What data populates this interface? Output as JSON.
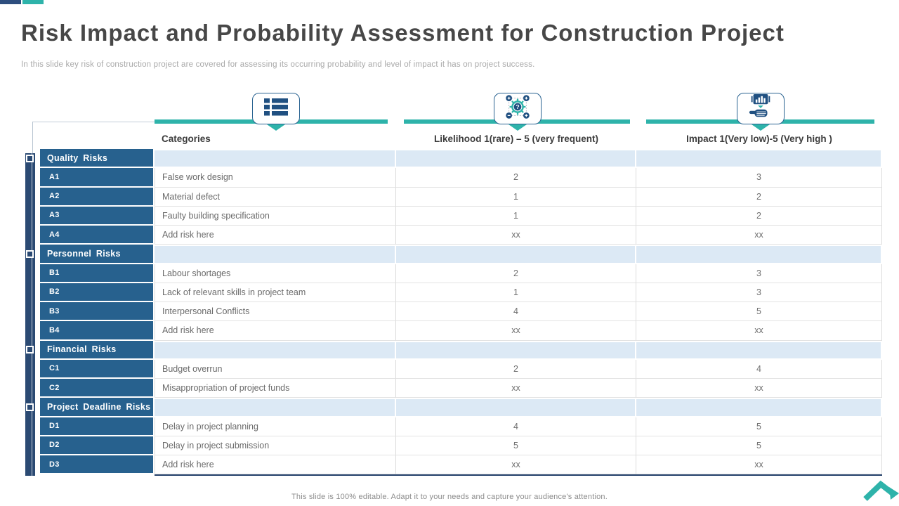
{
  "slide": {
    "title": "Risk Impact and Probability Assessment for Construction Project",
    "subtitle": "In this slide key risk of construction project are covered for assessing its occurring probability and level of impact it has on project success.",
    "footer_note": "This slide is 100% editable.  Adapt it to your needs and capture your audience's attention."
  },
  "colors": {
    "navy_accent": "#2e4e7e",
    "teal_accent": "#2eb3aa",
    "spine_navy": "#2b4a73",
    "sidebar_blue": "#27618e",
    "band_light_blue": "#dce9f5",
    "icon_navy": "#205081",
    "table_bottom_border": "#24416b"
  },
  "icons": [
    {
      "name": "list-icon"
    },
    {
      "name": "gear-question-icon"
    },
    {
      "name": "hand-holding-chart-icon"
    },
    {
      "name": "chevron-up-arrow-icon"
    }
  ],
  "table": {
    "columns": [
      "Categories",
      "Likelihood 1(rare) – 5 (very frequent)",
      "Impact 1(Very low)-5 (Very high )"
    ],
    "rows": [
      {
        "type": "group",
        "label": "Quality Risks"
      },
      {
        "type": "item",
        "label": "A1",
        "category": "False work design",
        "likelihood": "2",
        "impact": "3"
      },
      {
        "type": "item",
        "label": "A2",
        "category": "Material defect",
        "likelihood": "1",
        "impact": "2"
      },
      {
        "type": "item",
        "label": "A3",
        "category": "Faulty building specification",
        "likelihood": "1",
        "impact": "2"
      },
      {
        "type": "item",
        "label": "A4",
        "category": "Add risk here",
        "likelihood": "xx",
        "impact": "xx"
      },
      {
        "type": "group",
        "label": "Personnel Risks"
      },
      {
        "type": "item",
        "label": "B1",
        "category": "Labour shortages",
        "likelihood": "2",
        "impact": "3"
      },
      {
        "type": "item",
        "label": "B2",
        "category": "Lack of relevant skills in project team",
        "likelihood": "1",
        "impact": "3"
      },
      {
        "type": "item",
        "label": "B3",
        "category": "Interpersonal Conflicts",
        "likelihood": "4",
        "impact": "5"
      },
      {
        "type": "item",
        "label": "B4",
        "category": "Add risk here",
        "likelihood": "xx",
        "impact": "xx"
      },
      {
        "type": "group",
        "label": "Financial Risks"
      },
      {
        "type": "item",
        "label": "C1",
        "category": "Budget overrun",
        "likelihood": "2",
        "impact": "4"
      },
      {
        "type": "item",
        "label": "C2",
        "category": "Misappropriation of project funds",
        "likelihood": "xx",
        "impact": "xx"
      },
      {
        "type": "group",
        "label": "Project Deadline Risks"
      },
      {
        "type": "item",
        "label": "D1",
        "category": "Delay in project planning",
        "likelihood": "4",
        "impact": "5"
      },
      {
        "type": "item",
        "label": "D2",
        "category": "Delay in project submission",
        "likelihood": "5",
        "impact": "5"
      },
      {
        "type": "item",
        "label": "D3",
        "category": "Add risk here",
        "likelihood": "xx",
        "impact": "xx"
      }
    ]
  }
}
